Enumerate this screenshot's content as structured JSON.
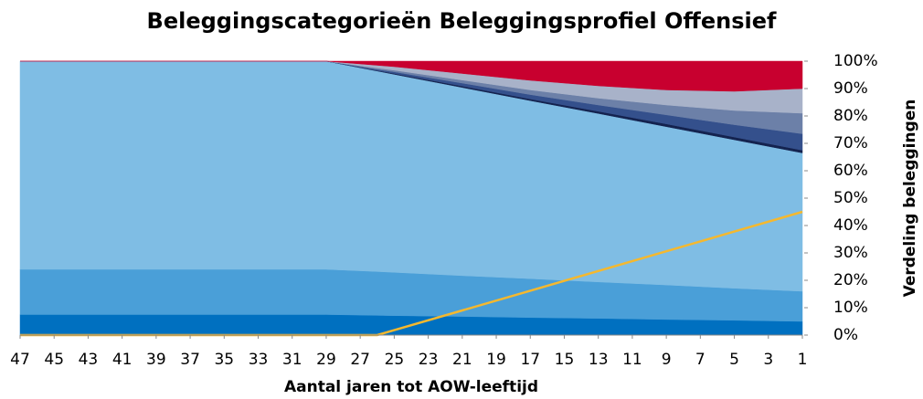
{
  "chart_data": {
    "type": "area",
    "stacked": true,
    "title": "Beleggingscategorieën Beleggingsprofiel Offensief",
    "x_label": "Aantal jaren tot AOW-leeftijd",
    "y_label": "Verdeling beleggingen",
    "x": [
      47,
      29,
      26,
      25,
      21,
      17,
      13,
      9,
      5,
      1
    ],
    "xlim": [
      47,
      1
    ],
    "xticks": [
      47,
      45,
      43,
      41,
      39,
      37,
      35,
      33,
      31,
      29,
      27,
      25,
      23,
      21,
      19,
      17,
      15,
      13,
      11,
      9,
      7,
      5,
      3,
      1
    ],
    "ylim": [
      0,
      100
    ],
    "yticks": [
      {
        "value": 0,
        "label": "0%"
      },
      {
        "value": 10,
        "label": "10%"
      },
      {
        "value": 20,
        "label": "20%"
      },
      {
        "value": 30,
        "label": "30%"
      },
      {
        "value": 40,
        "label": "40%"
      },
      {
        "value": 50,
        "label": "50%"
      },
      {
        "value": 60,
        "label": "60%"
      },
      {
        "value": 70,
        "label": "70%"
      },
      {
        "value": 80,
        "label": "80%"
      },
      {
        "value": 90,
        "label": "90%"
      },
      {
        "value": 100,
        "label": "100%"
      }
    ],
    "y_axis_side": "right",
    "grid": false,
    "series": [
      {
        "color": "#0070c0",
        "values": [
          7.5,
          7.5,
          7.2,
          7.1,
          6.8,
          6.4,
          6.1,
          5.7,
          5.4,
          5
        ]
      },
      {
        "color": "#4a9fd8",
        "values": [
          16.5,
          16.5,
          16.0,
          15.8,
          14.9,
          14.2,
          13.3,
          12.6,
          11.7,
          11
        ]
      },
      {
        "color": "#7fbde4",
        "values": [
          76,
          76,
          73.2,
          72.3,
          68.7,
          65,
          61.5,
          57.8,
          54.2,
          50.5
        ]
      },
      {
        "color": "#14234f",
        "values": [
          0,
          0,
          0.2,
          0.3,
          0.5,
          0.6,
          0.8,
          1,
          1,
          1
        ]
      },
      {
        "color": "#34508c",
        "values": [
          0,
          0,
          0.4,
          0.6,
          1.1,
          1.6,
          2.3,
          3.3,
          4.5,
          6
        ]
      },
      {
        "color": "#6c80a8",
        "values": [
          0,
          0,
          0.5,
          0.6,
          1.1,
          1.7,
          2.5,
          3.6,
          5.2,
          7.5
        ]
      },
      {
        "color": "#a8b2c9",
        "values": [
          0,
          0,
          1,
          1.3,
          2.4,
          3.5,
          4.5,
          5.5,
          7,
          9
        ]
      },
      {
        "color": "#c8002f",
        "values": [
          0,
          0,
          1.5,
          2,
          4.5,
          7,
          9,
          10.5,
          11,
          10
        ]
      },
      {
        "type": "line",
        "color": "#f5b82e",
        "values": [
          0,
          0,
          0,
          1.8,
          9,
          16.2,
          23.4,
          30.6,
          37.8,
          45
        ]
      }
    ]
  }
}
